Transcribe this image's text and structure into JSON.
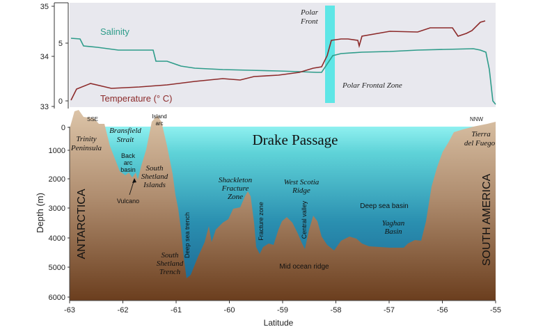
{
  "figure": {
    "top_panel": {
      "y_axis_values": [
        "35",
        "34",
        "33"
      ],
      "inner_temperature_ticks": [
        "5",
        "0"
      ],
      "salinity_label": "Salinity",
      "temperature_label": "Temperature (° C)",
      "polar_front_line1": "Polar",
      "polar_front_line2": "Front",
      "polar_frontal_zone": "Polar Frontal Zone",
      "colors": {
        "salinity": "#2e9c8a",
        "temperature": "#8c2a2a",
        "polar_front_band": "#5ee6e6",
        "panel_background": "#e8e8ee"
      }
    },
    "section": {
      "title": "Drake Passage",
      "y_axis_title": "Depth (m)",
      "depth_ticks": [
        "0",
        "1000",
        "2000",
        "3000",
        "4000",
        "5000",
        "6000"
      ],
      "x_axis_title": "Latitude",
      "latitude_ticks": [
        "-63",
        "-62",
        "-61",
        "-60",
        "-59",
        "-58",
        "-57",
        "-56",
        "-55"
      ],
      "direction_left": "SSE",
      "direction_right": "NNW",
      "continent_left": "ANTARCTICA",
      "continent_right": "SOUTH AMERICA",
      "colors": {
        "water_surface": "#8ff0f0",
        "water_deep": "#1a5f8c",
        "crust_top": "#dcc4a8",
        "crust_bottom": "#6b3e1e"
      },
      "labels": {
        "trinity_1": "Trinity",
        "trinity_2": "Peninsula",
        "bransfield_1": "Bransfield",
        "bransfield_2": "Strait",
        "island_arc_1": "Island",
        "island_arc_2": "arc",
        "back_arc_1": "Back",
        "back_arc_2": "arc",
        "back_arc_3": "basin",
        "south_shetland_islands_1": "South",
        "south_shetland_islands_2": "Shetland",
        "south_shetland_islands_3": "Islands",
        "vulcano": "Vulcano",
        "deep_sea_trench": "Deep sea trench",
        "south_shetland_trench_1": "South",
        "south_shetland_trench_2": "Shetland",
        "south_shetland_trench_3": "Trench",
        "shackleton_1": "Shackleton",
        "shackleton_2": "Fracture",
        "shackleton_3": "Zone",
        "fracture_zone": "Fracture zone",
        "west_scotia_1": "West Scotia",
        "west_scotia_2": "Ridge",
        "central_valley": "Central valley",
        "deep_sea_basin": "Deep sea basin",
        "yaghan_1": "Yaghan",
        "yaghan_2": "Basin",
        "mid_ocean_ridge": "Mid ocean ridge",
        "tierra_1": "Tierra",
        "tierra_2": "del Fuego"
      }
    }
  }
}
